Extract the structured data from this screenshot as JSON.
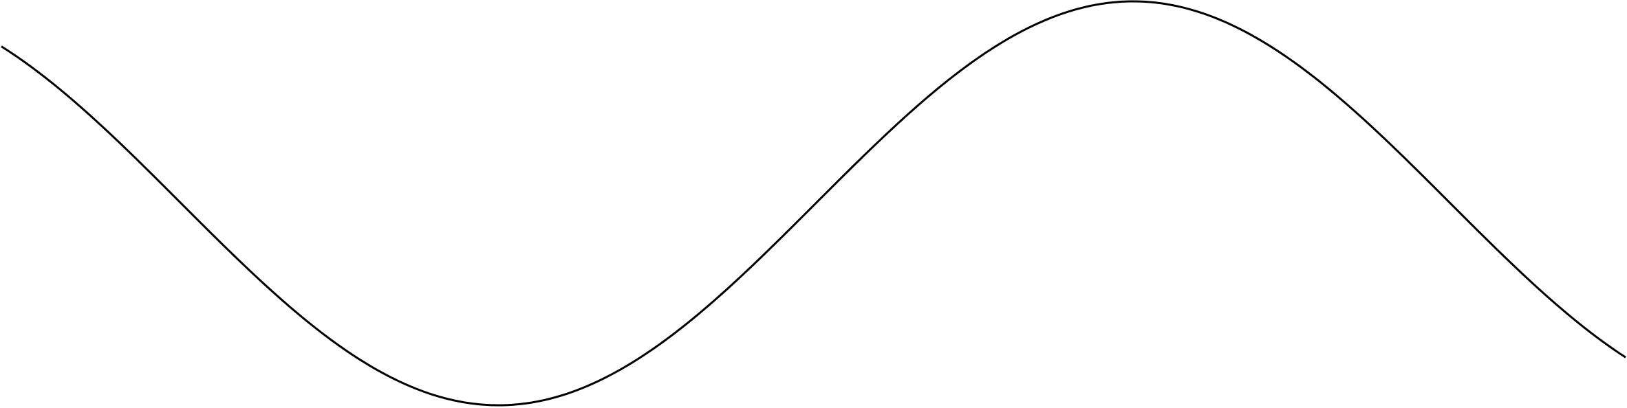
{
  "diagram": {
    "kind": "single-curve",
    "shape": "sinusoidal-wave",
    "stroke_color": "#000000",
    "background_color": "#ffffff",
    "labels": []
  }
}
